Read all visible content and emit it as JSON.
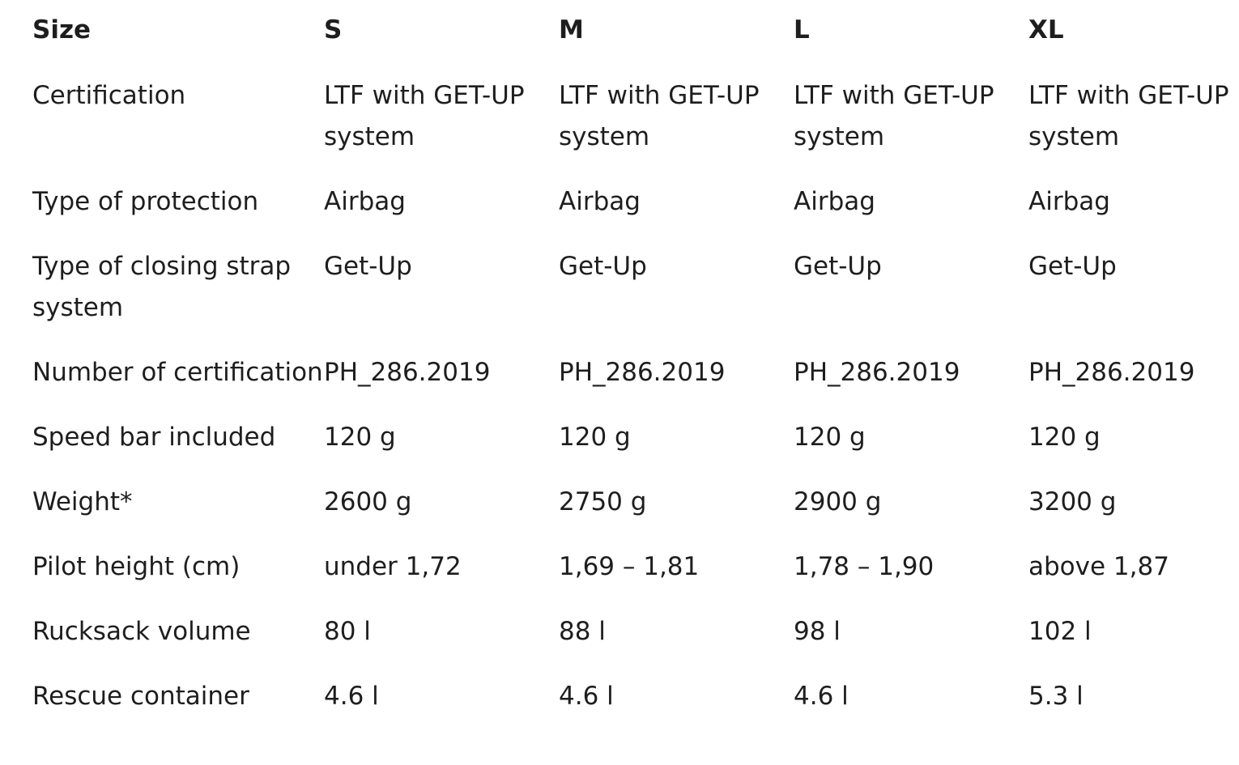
{
  "table": {
    "headers": [
      "Size",
      "S",
      "M",
      "L",
      "XL"
    ],
    "rows": [
      {
        "label": "Certification",
        "values": [
          "LTF with GET-UP system",
          "LTF with GET-UP system",
          "LTF with GET-UP system",
          "LTF with GET-UP system"
        ]
      },
      {
        "label": "Type of protection",
        "values": [
          "Airbag",
          "Airbag",
          "Airbag",
          "Airbag"
        ]
      },
      {
        "label": "Type of closing strap system",
        "values": [
          "Get-Up",
          "Get-Up",
          "Get-Up",
          "Get-Up"
        ]
      },
      {
        "label": "Number of certification",
        "values": [
          "PH_286.2019",
          "PH_286.2019",
          "PH_286.2019",
          "PH_286.2019"
        ]
      },
      {
        "label": "Speed bar included",
        "values": [
          "120 g",
          "120 g",
          "120 g",
          "120 g"
        ]
      },
      {
        "label": "Weight*",
        "values": [
          "2600 g",
          "2750 g",
          "2900 g",
          "3200 g"
        ]
      },
      {
        "label": "Pilot height (cm)",
        "values": [
          "under 1,72",
          "1,69 – 1,81",
          "1,78 – 1,90",
          "above 1,87"
        ]
      },
      {
        "label": "Rucksack volume",
        "values": [
          "80 l",
          "88 l",
          "98 l",
          "102 l"
        ]
      },
      {
        "label": "Rescue container",
        "values": [
          "4.6 l",
          "4.6 l",
          "4.6 l",
          "5.3 l"
        ]
      }
    ]
  }
}
